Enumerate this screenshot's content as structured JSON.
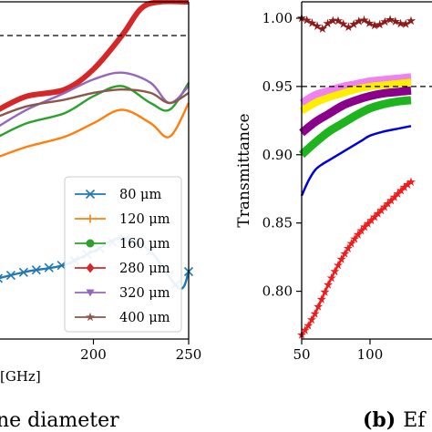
{
  "chart_data": [
    {
      "type": "line",
      "panel": "left",
      "xlabel": "[GHz]",
      "caption": "ne diameter",
      "ylabel": "",
      "x_ticks": [
        200,
        250
      ],
      "xlim": [
        150,
        250
      ],
      "ylim": [
        0.0,
        1.0
      ],
      "grid": false,
      "legend_position": "bottom-right",
      "reference_line": 0.9,
      "series": [
        {
          "name": "80 μm",
          "color": "#1f77b4",
          "marker": "x",
          "x": [
            150,
            165,
            185,
            200,
            215,
            230,
            245,
            250
          ],
          "y": [
            0.18,
            0.2,
            0.22,
            0.26,
            0.3,
            0.26,
            0.15,
            0.2
          ]
        },
        {
          "name": "120 μm",
          "color": "#ff7f0e",
          "marker": "|",
          "x": [
            150,
            165,
            185,
            200,
            215,
            230,
            240,
            250
          ],
          "y": [
            0.54,
            0.57,
            0.6,
            0.64,
            0.68,
            0.64,
            0.6,
            0.7
          ]
        },
        {
          "name": "160 μm",
          "color": "#2ca02c",
          "marker": "o",
          "x": [
            150,
            165,
            185,
            200,
            215,
            230,
            240,
            250
          ],
          "y": [
            0.6,
            0.64,
            0.67,
            0.72,
            0.75,
            0.7,
            0.68,
            0.76
          ]
        },
        {
          "name": "280 μm",
          "color": "#d62728",
          "marker": "d",
          "x": [
            150,
            165,
            185,
            200,
            215,
            225,
            235,
            250
          ],
          "y": [
            0.68,
            0.72,
            0.74,
            0.8,
            0.9,
            0.98,
            1.0,
            1.0
          ]
        },
        {
          "name": "320 μm",
          "color": "#9467bd",
          "marker": "v",
          "x": [
            150,
            165,
            185,
            200,
            215,
            230,
            240,
            250
          ],
          "y": [
            0.63,
            0.68,
            0.73,
            0.77,
            0.79,
            0.76,
            0.7,
            0.75
          ]
        },
        {
          "name": "400 μm",
          "color": "#8c564b",
          "marker": "*",
          "x": [
            150,
            165,
            185,
            200,
            215,
            230,
            240,
            250
          ],
          "y": [
            0.66,
            0.69,
            0.71,
            0.73,
            0.74,
            0.73,
            0.7,
            0.73
          ]
        }
      ]
    },
    {
      "type": "line",
      "panel": "right",
      "caption_label": "(b)",
      "caption_text": "Ef",
      "xlabel": "",
      "ylabel": "Transmittance",
      "x_ticks": [
        50,
        100
      ],
      "y_ticks": [
        0.8,
        0.85,
        0.9,
        0.95,
        1.0
      ],
      "y_tick_labels": [
        "0.80",
        "0.85",
        "0.90",
        "0.95",
        "1.00"
      ],
      "xlim": [
        50,
        150
      ],
      "ylim": [
        0.765,
        1.012
      ],
      "grid": false,
      "reference_line": 0.95,
      "series": [
        {
          "color": "#8b1a1a",
          "x": [
            50,
            55,
            60,
            65,
            70,
            75,
            80,
            85,
            90,
            95,
            100,
            105,
            110,
            115,
            120,
            125,
            130
          ],
          "y": [
            1.0,
            0.998,
            0.995,
            0.992,
            0.997,
            0.999,
            0.996,
            0.993,
            0.997,
            0.999,
            0.996,
            0.994,
            0.997,
            0.999,
            0.997,
            0.995,
            0.998
          ]
        },
        {
          "color": "#ee82ee",
          "x": [
            50,
            60,
            70,
            80,
            90,
            100,
            110,
            120,
            130
          ],
          "y": [
            0.938,
            0.944,
            0.947,
            0.95,
            0.952,
            0.954,
            0.955,
            0.956,
            0.957
          ]
        },
        {
          "color": "#ffee00",
          "x": [
            50,
            60,
            70,
            80,
            90,
            100,
            110,
            120,
            130
          ],
          "y": [
            0.932,
            0.938,
            0.942,
            0.945,
            0.948,
            0.95,
            0.951,
            0.952,
            0.953
          ]
        },
        {
          "color": "#8b008b",
          "x": [
            50,
            60,
            70,
            80,
            90,
            100,
            110,
            120,
            130
          ],
          "y": [
            0.916,
            0.924,
            0.93,
            0.936,
            0.94,
            0.943,
            0.945,
            0.946,
            0.947
          ]
        },
        {
          "color": "#1eb41e",
          "x": [
            50,
            60,
            70,
            80,
            90,
            100,
            110,
            120,
            130
          ],
          "y": [
            0.9,
            0.909,
            0.917,
            0.923,
            0.929,
            0.934,
            0.937,
            0.939,
            0.94
          ]
        },
        {
          "color": "#0000dd",
          "x": [
            50,
            55,
            60,
            65,
            70,
            75,
            80,
            85,
            90,
            95,
            100,
            110,
            120,
            130
          ],
          "y": [
            0.87,
            0.881,
            0.889,
            0.893,
            0.896,
            0.899,
            0.902,
            0.905,
            0.908,
            0.911,
            0.914,
            0.917,
            0.919,
            0.921
          ]
        },
        {
          "color": "#ee1c1c",
          "x": [
            50,
            55,
            60,
            65,
            70,
            75,
            80,
            85,
            90,
            95,
            100,
            105,
            110,
            115,
            120,
            125,
            130
          ],
          "y": [
            0.768,
            0.775,
            0.784,
            0.795,
            0.806,
            0.816,
            0.825,
            0.833,
            0.84,
            0.846,
            0.851,
            0.856,
            0.861,
            0.866,
            0.871,
            0.876,
            0.88
          ]
        }
      ]
    }
  ]
}
